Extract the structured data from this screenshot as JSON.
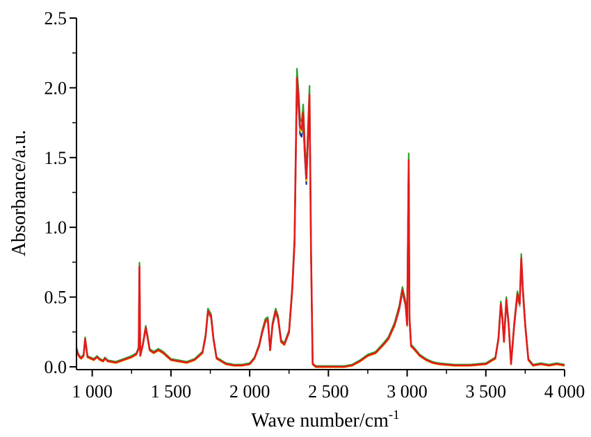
{
  "chart_data": {
    "type": "line",
    "title": "",
    "xlabel": "Wave number/cm",
    "xlabel_superscript": "-1",
    "ylabel": "Absorbance/a.u.",
    "xlim": [
      900,
      4000
    ],
    "ylim": [
      -0.02,
      2.5
    ],
    "x_ticks": [
      1000,
      1500,
      2000,
      2500,
      3000,
      3500,
      4000
    ],
    "x_tick_labels": [
      "1 000",
      "1 500",
      "2 000",
      "2 500",
      "3 000",
      "3 500",
      "4 000"
    ],
    "y_ticks": [
      0.0,
      0.5,
      1.0,
      1.5,
      2.0,
      2.5
    ],
    "y_tick_labels": [
      "0.0",
      "0.5",
      "1.0",
      "1.5",
      "2.0",
      "2.5"
    ],
    "grid": false,
    "legend": "none",
    "colors": [
      "#1f2d8f",
      "#1a9fd6",
      "#f2d21b",
      "#2ca02c",
      "#e41a1c"
    ],
    "series": [
      {
        "color": "#e41a1c",
        "x": [
          900,
          910,
          920,
          930,
          945,
          955,
          970,
          990,
          1010,
          1030,
          1050,
          1070,
          1080,
          1100,
          1150,
          1200,
          1250,
          1280,
          1295,
          1300,
          1305,
          1320,
          1340,
          1350,
          1365,
          1390,
          1420,
          1450,
          1480,
          1500,
          1550,
          1600,
          1650,
          1700,
          1720,
          1735,
          1745,
          1755,
          1770,
          1790,
          1850,
          1900,
          1950,
          2000,
          2030,
          2060,
          2080,
          2100,
          2115,
          2130,
          2145,
          2165,
          2180,
          2200,
          2220,
          2250,
          2270,
          2285,
          2300,
          2310,
          2320,
          2330,
          2340,
          2350,
          2360,
          2370,
          2380,
          2390,
          2400,
          2420,
          2500,
          2600,
          2650,
          2700,
          2750,
          2800,
          2850,
          2880,
          2920,
          2950,
          2970,
          2990,
          3000,
          3010,
          3015,
          3025,
          3050,
          3080,
          3120,
          3160,
          3200,
          3300,
          3400,
          3500,
          3560,
          3580,
          3595,
          3605,
          3615,
          3630,
          3645,
          3660,
          3680,
          3700,
          3715,
          3725,
          3735,
          3750,
          3770,
          3800,
          3850,
          3900,
          3950,
          4000
        ],
        "y": [
          0.13,
          0.09,
          0.07,
          0.06,
          0.08,
          0.2,
          0.07,
          0.06,
          0.05,
          0.07,
          0.05,
          0.04,
          0.06,
          0.04,
          0.03,
          0.05,
          0.07,
          0.09,
          0.13,
          0.72,
          0.08,
          0.15,
          0.28,
          0.22,
          0.12,
          0.1,
          0.12,
          0.1,
          0.07,
          0.05,
          0.04,
          0.03,
          0.05,
          0.1,
          0.22,
          0.4,
          0.38,
          0.36,
          0.2,
          0.06,
          0.02,
          0.01,
          0.01,
          0.02,
          0.06,
          0.15,
          0.25,
          0.33,
          0.34,
          0.12,
          0.3,
          0.4,
          0.35,
          0.18,
          0.16,
          0.25,
          0.55,
          0.9,
          2.07,
          1.92,
          1.72,
          1.7,
          1.82,
          1.55,
          1.35,
          1.65,
          1.95,
          0.8,
          0.02,
          0.0,
          0.0,
          0.0,
          0.01,
          0.04,
          0.08,
          0.1,
          0.16,
          0.2,
          0.3,
          0.42,
          0.55,
          0.45,
          0.3,
          1.48,
          0.35,
          0.15,
          0.12,
          0.08,
          0.05,
          0.03,
          0.02,
          0.01,
          0.01,
          0.02,
          0.06,
          0.2,
          0.45,
          0.35,
          0.18,
          0.48,
          0.3,
          0.02,
          0.3,
          0.52,
          0.45,
          0.78,
          0.55,
          0.3,
          0.05,
          0.01,
          0.02,
          0.01,
          0.02,
          0.01
        ]
      }
    ]
  }
}
